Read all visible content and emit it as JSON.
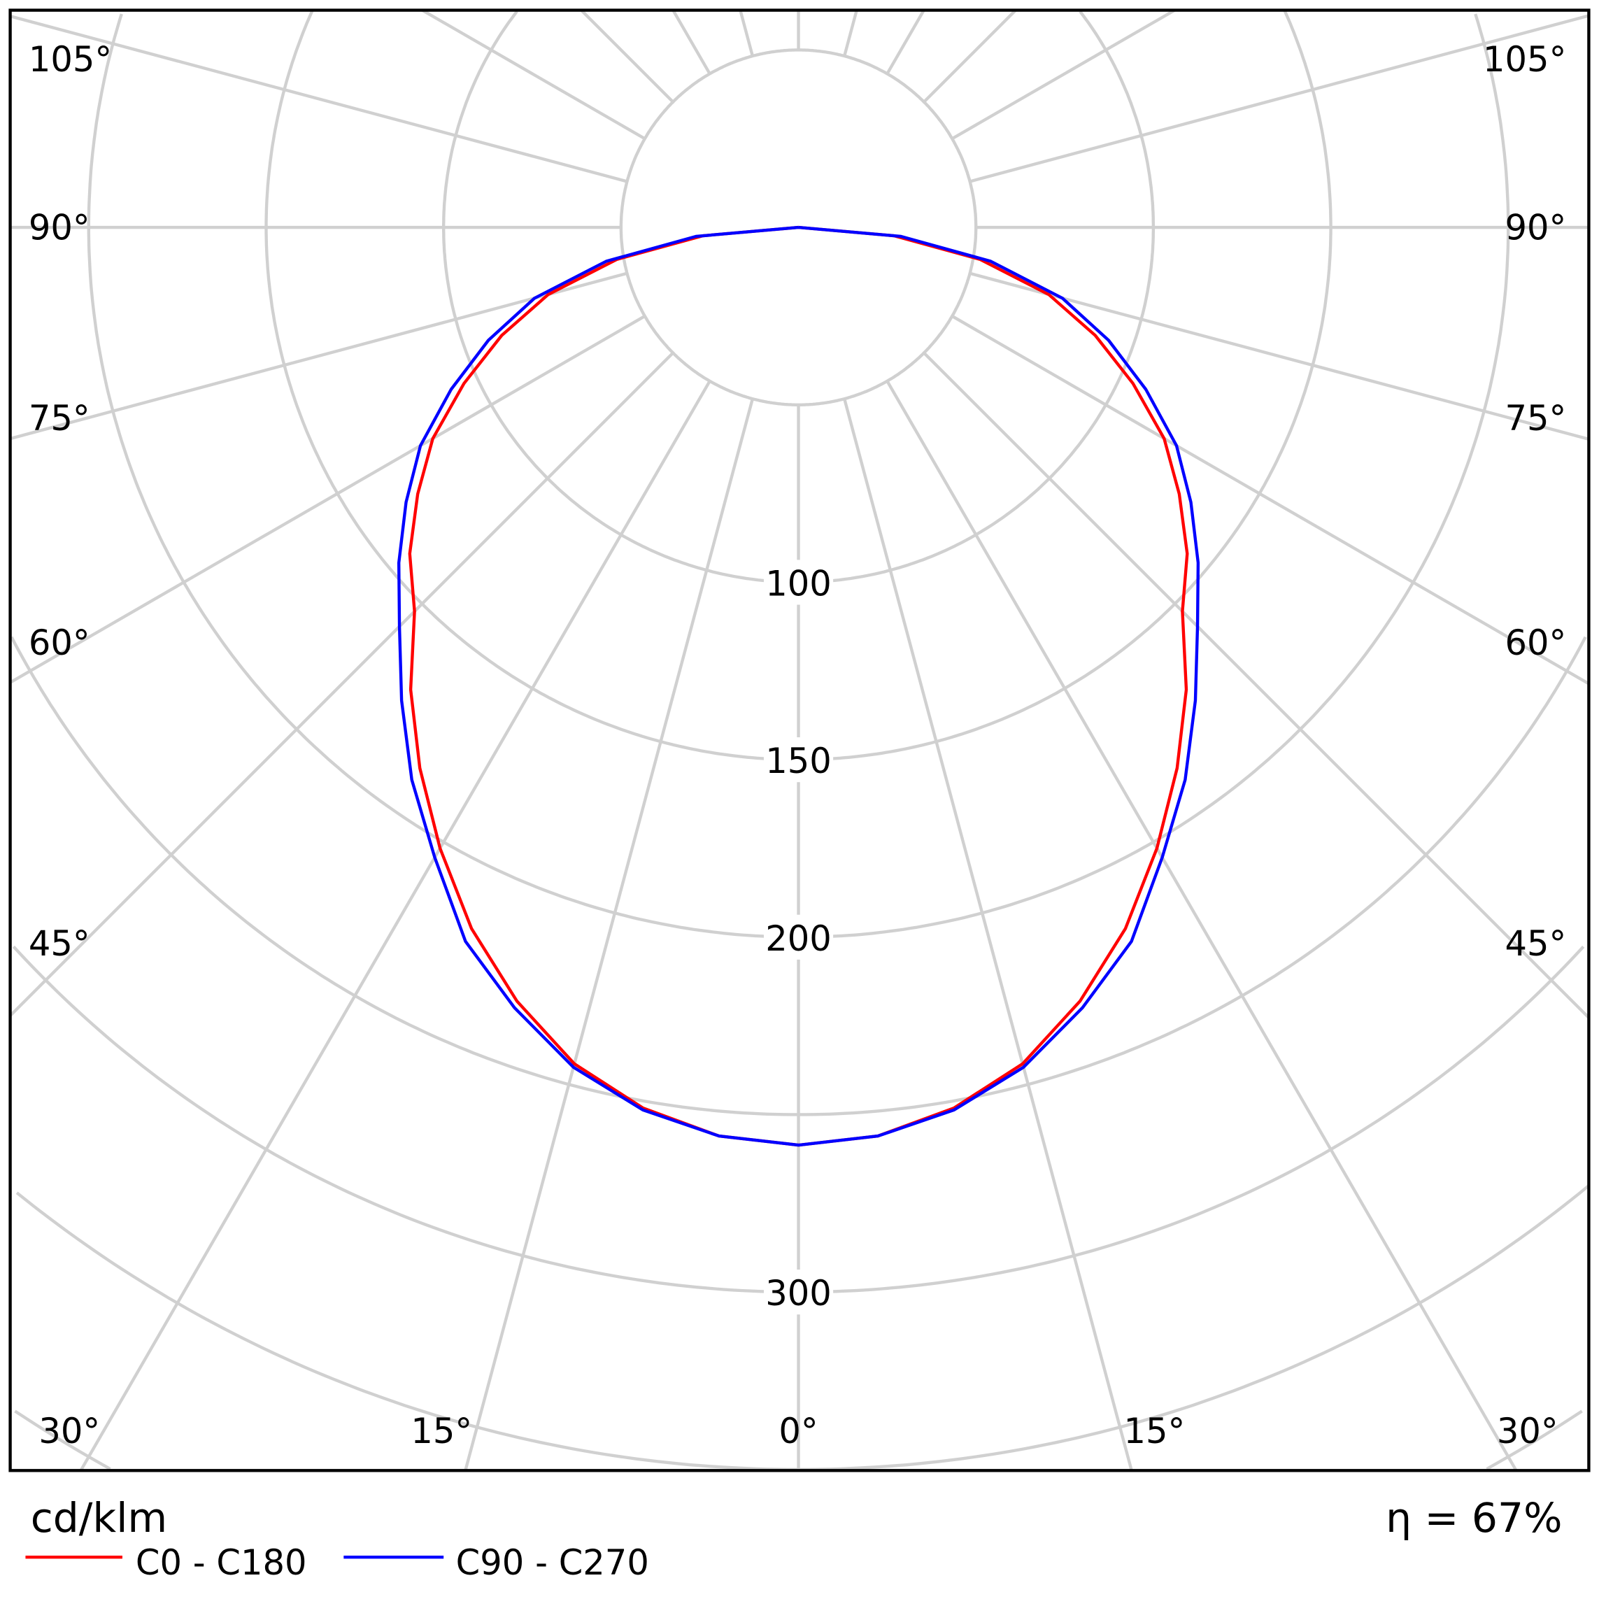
{
  "chart_data": {
    "type": "polar-line",
    "title": "",
    "unit_label": "cd/klm",
    "efficiency_label": "η = 67%",
    "radial_range": [
      0,
      300
    ],
    "ring_step": 50,
    "ring_labels": [
      "100",
      "150",
      "200",
      "300"
    ],
    "ring_label_values": [
      100,
      150,
      200,
      300
    ],
    "angle_labels": {
      "left": [
        "105°",
        "90°",
        "75°",
        "60°",
        "45°",
        "30°"
      ],
      "bottom": [
        "15°",
        "0°",
        "15°"
      ],
      "right": [
        "105°",
        "90°",
        "75°",
        "60°",
        "45°",
        "30°"
      ]
    },
    "angles_deg": [
      0,
      5,
      10,
      15,
      20,
      25,
      30,
      35,
      40,
      45,
      50,
      55,
      60,
      65,
      70,
      75,
      80,
      85,
      90
    ],
    "series": [
      {
        "name": "C0 - C180",
        "color": "#ff0000",
        "values": [
          258.6,
          257,
          252,
          244,
          232,
          218,
          202,
          186,
          170,
          153,
          143,
          131,
          119,
          104,
          89,
          73,
          52,
          27,
          0
        ]
      },
      {
        "name": "C90 - C270",
        "color": "#0000ff",
        "values": [
          258.6,
          257,
          252.5,
          245,
          234,
          222,
          205,
          190,
          174,
          159,
          147,
          135,
          123,
          108,
          93,
          77,
          55,
          29,
          0
        ]
      }
    ],
    "grid": true
  }
}
